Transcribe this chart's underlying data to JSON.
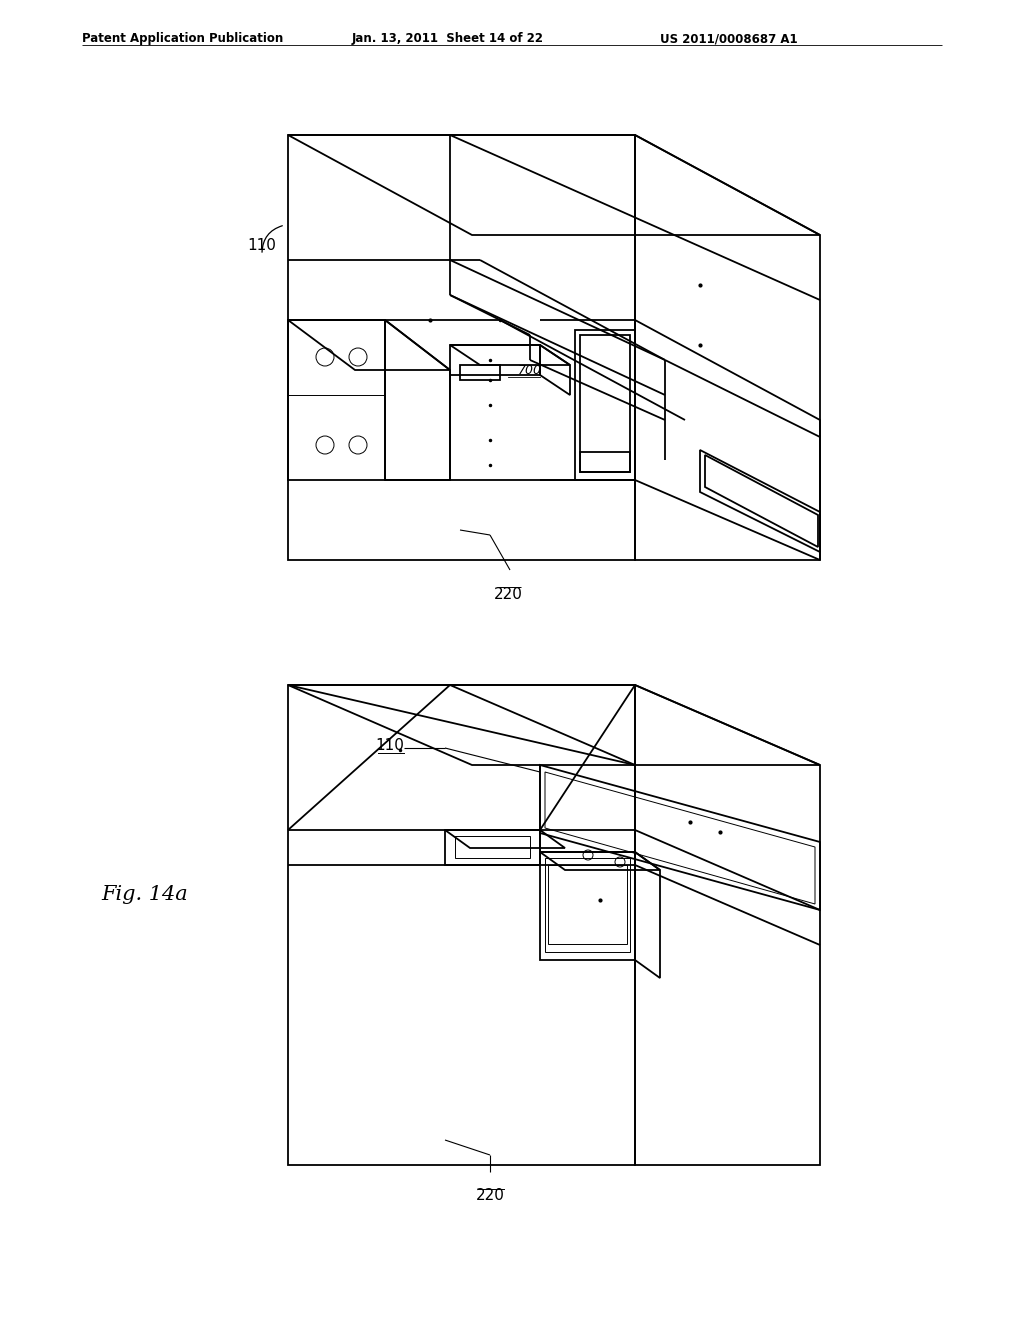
{
  "background_color": "#ffffff",
  "header_text": "Patent Application Publication",
  "header_date": "Jan. 13, 2011  Sheet 14 of 22",
  "header_patent": "US 2011/0008687 A1",
  "fig_label": "Fig. 14a",
  "label_110_top": "110",
  "label_220_top": "220",
  "label_700": "700",
  "label_110_bottom": "110",
  "label_220_bottom": "220",
  "line_color": "#000000",
  "lw_main": 1.3,
  "lw_thin": 0.7,
  "lw_thick": 1.8
}
